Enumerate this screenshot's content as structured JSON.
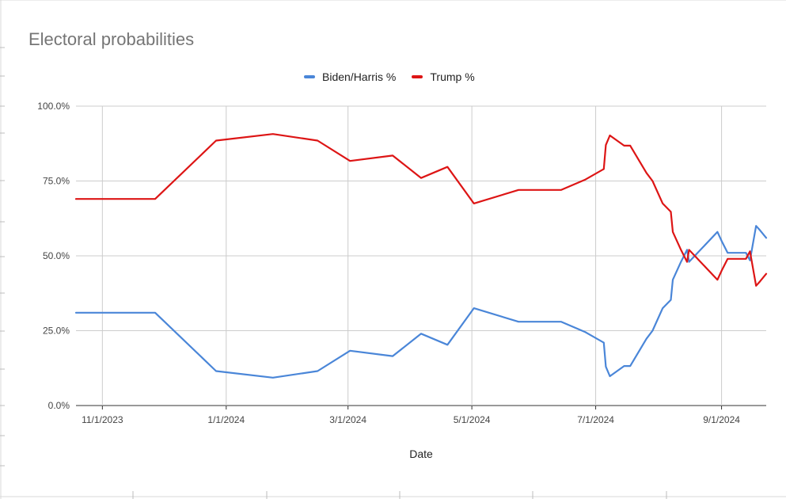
{
  "chart_data": {
    "type": "line",
    "title": "Electoral probabilities",
    "xlabel": "Date",
    "ylabel": "",
    "ylim": [
      0,
      100
    ],
    "xlim": [
      "2023-10-19",
      "2024-09-23"
    ],
    "y_ticks": [
      "0.0%",
      "25.0%",
      "50.0%",
      "75.0%",
      "100.0%"
    ],
    "y_tick_values": [
      0,
      25,
      50,
      75,
      100
    ],
    "x_ticks": [
      "11/1/2023",
      "1/1/2024",
      "3/1/2024",
      "5/1/2024",
      "7/1/2024",
      "9/1/2024"
    ],
    "x_tick_dates": [
      "2023-11-01",
      "2024-01-01",
      "2024-03-01",
      "2024-05-01",
      "2024-07-01",
      "2024-09-01"
    ],
    "grid": true,
    "legend_position": "top",
    "series": [
      {
        "name": "Biden/Harris %",
        "color": "#4a86d8",
        "points": [
          [
            "2023-10-19",
            31
          ],
          [
            "2023-11-27",
            31
          ],
          [
            "2023-12-27",
            11.5
          ],
          [
            "2024-01-24",
            9.3
          ],
          [
            "2024-02-15",
            11.5
          ],
          [
            "2024-03-02",
            18.3
          ],
          [
            "2024-03-23",
            16.5
          ],
          [
            "2024-04-06",
            24
          ],
          [
            "2024-04-19",
            20.3
          ],
          [
            "2024-05-02",
            32.5
          ],
          [
            "2024-05-24",
            28
          ],
          [
            "2024-06-14",
            28
          ],
          [
            "2024-06-26",
            24.5
          ],
          [
            "2024-07-05",
            21
          ],
          [
            "2024-07-06",
            13
          ],
          [
            "2024-07-08",
            9.8
          ],
          [
            "2024-07-15",
            13.2
          ],
          [
            "2024-07-18",
            13.2
          ],
          [
            "2024-07-26",
            22.3
          ],
          [
            "2024-07-29",
            25
          ],
          [
            "2024-08-03",
            32.5
          ],
          [
            "2024-08-07",
            35.3
          ],
          [
            "2024-08-08",
            42
          ],
          [
            "2024-08-12",
            48
          ],
          [
            "2024-08-15",
            52
          ],
          [
            "2024-08-16",
            48
          ],
          [
            "2024-08-30",
            58
          ],
          [
            "2024-09-01",
            55
          ],
          [
            "2024-09-04",
            51
          ],
          [
            "2024-09-13",
            51
          ],
          [
            "2024-09-15",
            48.5
          ],
          [
            "2024-09-18",
            60
          ],
          [
            "2024-09-20",
            58.5
          ],
          [
            "2024-09-23",
            56
          ]
        ]
      },
      {
        "name": "Trump %",
        "color": "#dd1515",
        "points": [
          [
            "2023-10-19",
            69
          ],
          [
            "2023-11-27",
            69
          ],
          [
            "2023-12-27",
            88.5
          ],
          [
            "2024-01-24",
            90.7
          ],
          [
            "2024-02-15",
            88.5
          ],
          [
            "2024-03-02",
            81.7
          ],
          [
            "2024-03-23",
            83.5
          ],
          [
            "2024-04-06",
            76
          ],
          [
            "2024-04-19",
            79.7
          ],
          [
            "2024-05-02",
            67.5
          ],
          [
            "2024-05-24",
            72
          ],
          [
            "2024-06-14",
            72
          ],
          [
            "2024-06-26",
            75.5
          ],
          [
            "2024-07-05",
            79
          ],
          [
            "2024-07-06",
            87
          ],
          [
            "2024-07-08",
            90.2
          ],
          [
            "2024-07-15",
            86.8
          ],
          [
            "2024-07-18",
            86.8
          ],
          [
            "2024-07-26",
            77.7
          ],
          [
            "2024-07-29",
            75
          ],
          [
            "2024-08-03",
            67.5
          ],
          [
            "2024-08-07",
            64.7
          ],
          [
            "2024-08-08",
            58
          ],
          [
            "2024-08-12",
            52
          ],
          [
            "2024-08-15",
            48
          ],
          [
            "2024-08-16",
            52
          ],
          [
            "2024-08-30",
            42
          ],
          [
            "2024-09-01",
            45
          ],
          [
            "2024-09-04",
            49
          ],
          [
            "2024-09-13",
            49
          ],
          [
            "2024-09-15",
            51.5
          ],
          [
            "2024-09-18",
            40
          ],
          [
            "2024-09-20",
            41.5
          ],
          [
            "2024-09-23",
            44
          ]
        ]
      }
    ]
  }
}
